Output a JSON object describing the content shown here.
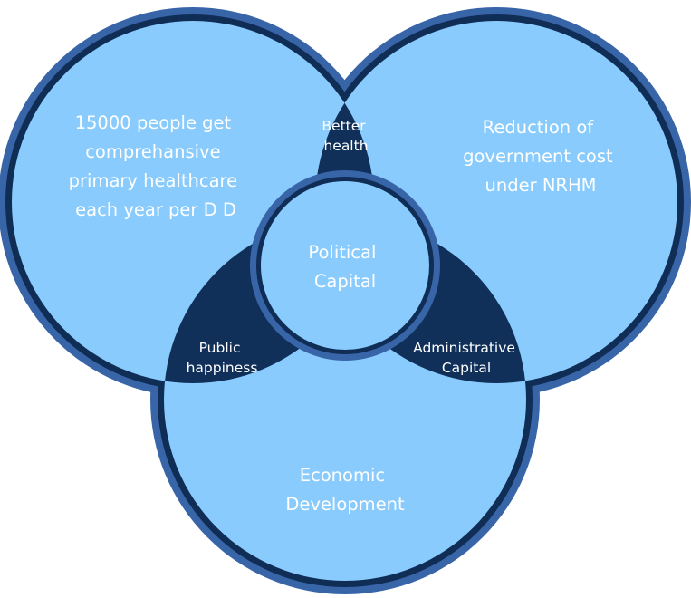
{
  "colors": {
    "outer_ring": "#3865a8",
    "inner_ring": "#0f2d55",
    "circle_fill": "#89cbfc",
    "overlap_fill": "#10305a",
    "text": "#ffffff"
  },
  "circles": {
    "left": {
      "lines": [
        "15000 people get",
        "comprehansive",
        "primary healthcare",
        "each year per D D"
      ]
    },
    "right": {
      "lines": [
        "Reduction of",
        "government cost",
        "under NRHM"
      ]
    },
    "bottom": {
      "lines": [
        "Economic",
        "Development"
      ]
    }
  },
  "overlaps": {
    "top": {
      "lines": [
        "Better",
        "health"
      ]
    },
    "left": {
      "lines": [
        "Public",
        "happiness"
      ]
    },
    "right": {
      "lines": [
        "Administrative",
        "Capital"
      ]
    }
  },
  "center": {
    "lines": [
      "Political",
      "Capital"
    ]
  }
}
